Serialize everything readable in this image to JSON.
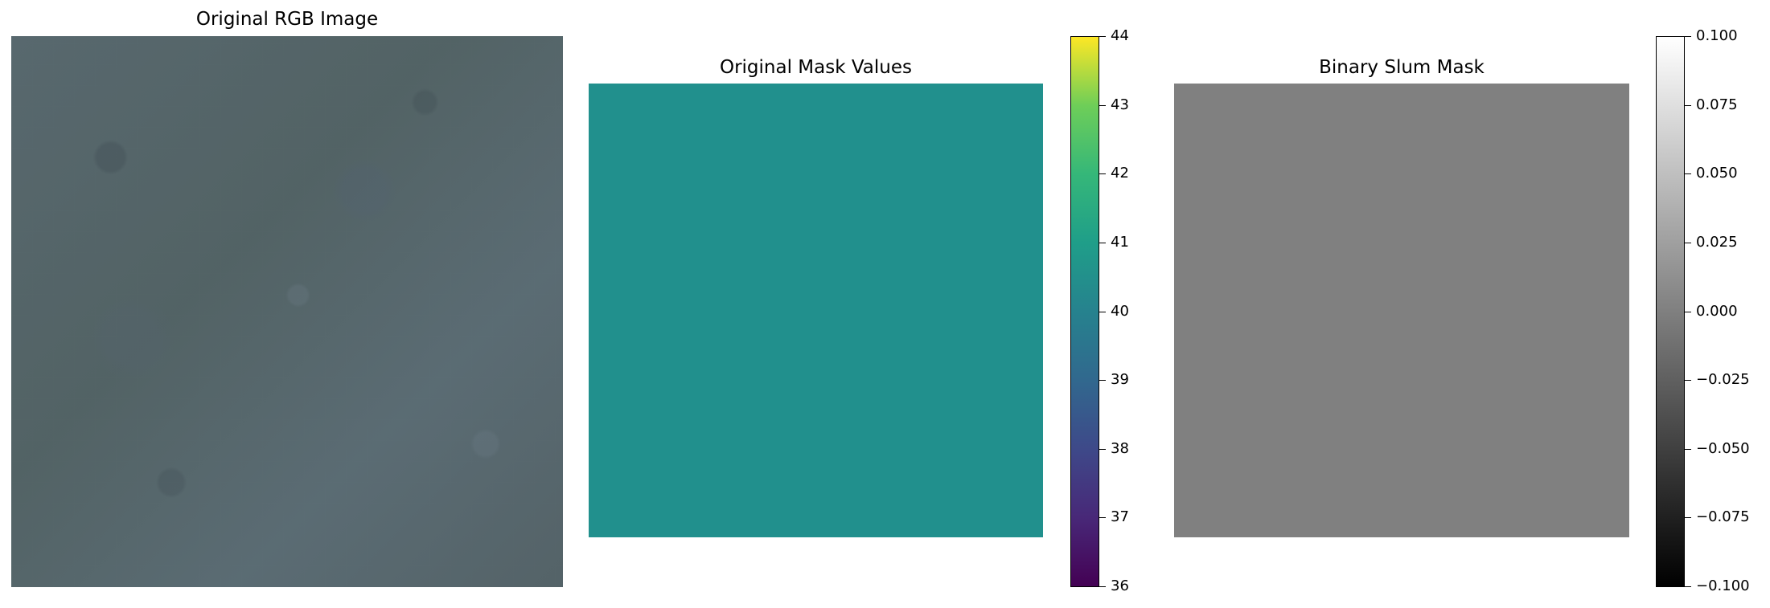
{
  "panels": [
    {
      "title": "Original RGB Image",
      "kind": "rgb"
    },
    {
      "title": "Original Mask Values",
      "kind": "constant-mask",
      "fill_color": "#21908d",
      "colorbar": {
        "colormap": "viridis",
        "ticks": [
          "44",
          "43",
          "42",
          "41",
          "40",
          "39",
          "38",
          "37",
          "36"
        ]
      }
    },
    {
      "title": "Binary Slum Mask",
      "kind": "binary-mask",
      "fill_color": "#808080",
      "colorbar": {
        "colormap": "gray",
        "ticks": [
          "0.100",
          "0.075",
          "0.050",
          "0.025",
          "0.000",
          "−0.025",
          "−0.050",
          "−0.075",
          "−0.100"
        ]
      }
    }
  ]
}
